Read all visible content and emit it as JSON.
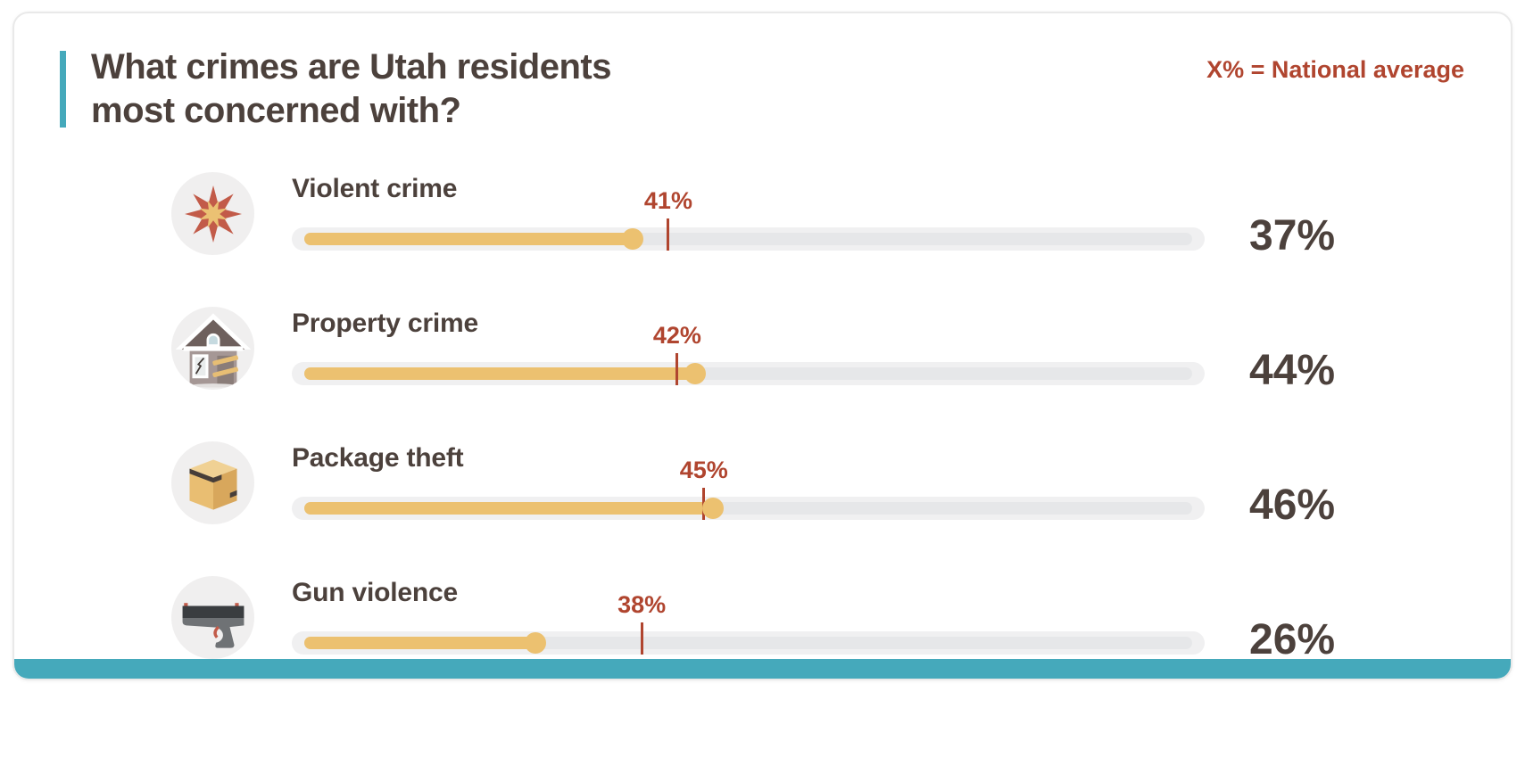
{
  "header": {
    "title_line1": "What crimes are Utah residents",
    "title_line2": "most concerned with?",
    "legend_note": "X% = National average"
  },
  "colors": {
    "teal_accent": "#45A9BB",
    "brick_red": "#B0452F",
    "gold_bar": "#ECC170",
    "dark_text": "#4C413C",
    "track_outer": "#F0F0F1",
    "track_inner": "#E6E7E9",
    "icon_circle_bg": "#F0EFEF"
  },
  "chart_data": {
    "type": "bar",
    "orientation": "horizontal",
    "title": "What crimes are Utah residents most concerned with?",
    "note": "X% = National average",
    "unit": "%",
    "categories": [
      "Violent crime",
      "Property crime",
      "Package theft",
      "Gun violence"
    ],
    "series": [
      {
        "name": "Utah residents",
        "values": [
          37,
          44,
          46,
          26
        ]
      },
      {
        "name": "National average",
        "values": [
          41,
          42,
          45,
          38
        ]
      }
    ],
    "xlim": [
      0,
      100
    ],
    "grid": false,
    "legend_position": "top-right"
  },
  "rows": [
    {
      "label": "Violent crime",
      "icon": "starburst-icon",
      "value": 37,
      "value_label": "37%",
      "national": 41,
      "national_label": "41%"
    },
    {
      "label": "Property crime",
      "icon": "house-icon",
      "value": 44,
      "value_label": "44%",
      "national": 42,
      "national_label": "42%"
    },
    {
      "label": "Package theft",
      "icon": "package-icon",
      "value": 46,
      "value_label": "46%",
      "national": 45,
      "national_label": "45%"
    },
    {
      "label": "Gun violence",
      "icon": "handgun-icon",
      "value": 26,
      "value_label": "26%",
      "national": 38,
      "national_label": "38%"
    }
  ]
}
